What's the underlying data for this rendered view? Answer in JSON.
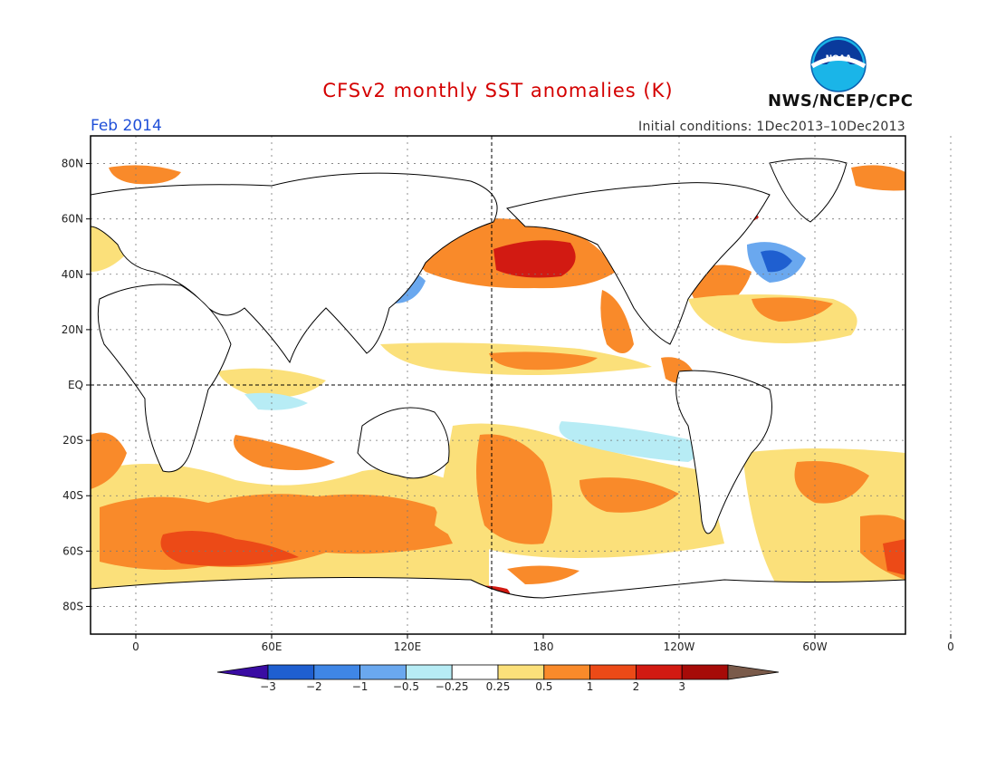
{
  "title": "CFSv2 monthly SST anomalies (K)",
  "valid_month": "Feb 2014",
  "initial_conditions": "Initial conditions: 1Dec2013–10Dec2013",
  "agency": "NWS/NCEP/CPC",
  "logo": {
    "text": "NOAA",
    "icon": "noaa-logo-icon"
  },
  "map": {
    "lat_ticks": [
      "80N",
      "60N",
      "40N",
      "20N",
      "EQ",
      "20S",
      "40S",
      "60S",
      "80S"
    ],
    "lon_ticks": [
      "0",
      "60E",
      "120E",
      "180",
      "120W",
      "60W",
      "0"
    ]
  },
  "colorbar": {
    "labels": [
      "−3",
      "−2",
      "−1",
      "−0.5",
      "−0.25",
      "0.25",
      "0.5",
      "1",
      "2",
      "3"
    ],
    "colors": [
      "#3a0ca3",
      "#1f5fd0",
      "#3f86e6",
      "#6aa8ef",
      "#b7ecf5",
      "#ffffff",
      "#fbe07a",
      "#f98a2a",
      "#ec4a17",
      "#d21a12",
      "#a60b08",
      "#7a5a4a"
    ]
  },
  "colors": {
    "land": "#ffffff",
    "coast": "#000000",
    "neg3": "#1f5fd0",
    "neg2": "#3f86e6",
    "neg1": "#6aa8ef",
    "neg025": "#b7ecf5",
    "pos025": "#fbe07a",
    "pos05": "#f98a2a",
    "pos1": "#ec4a17",
    "pos2": "#d21a12"
  }
}
